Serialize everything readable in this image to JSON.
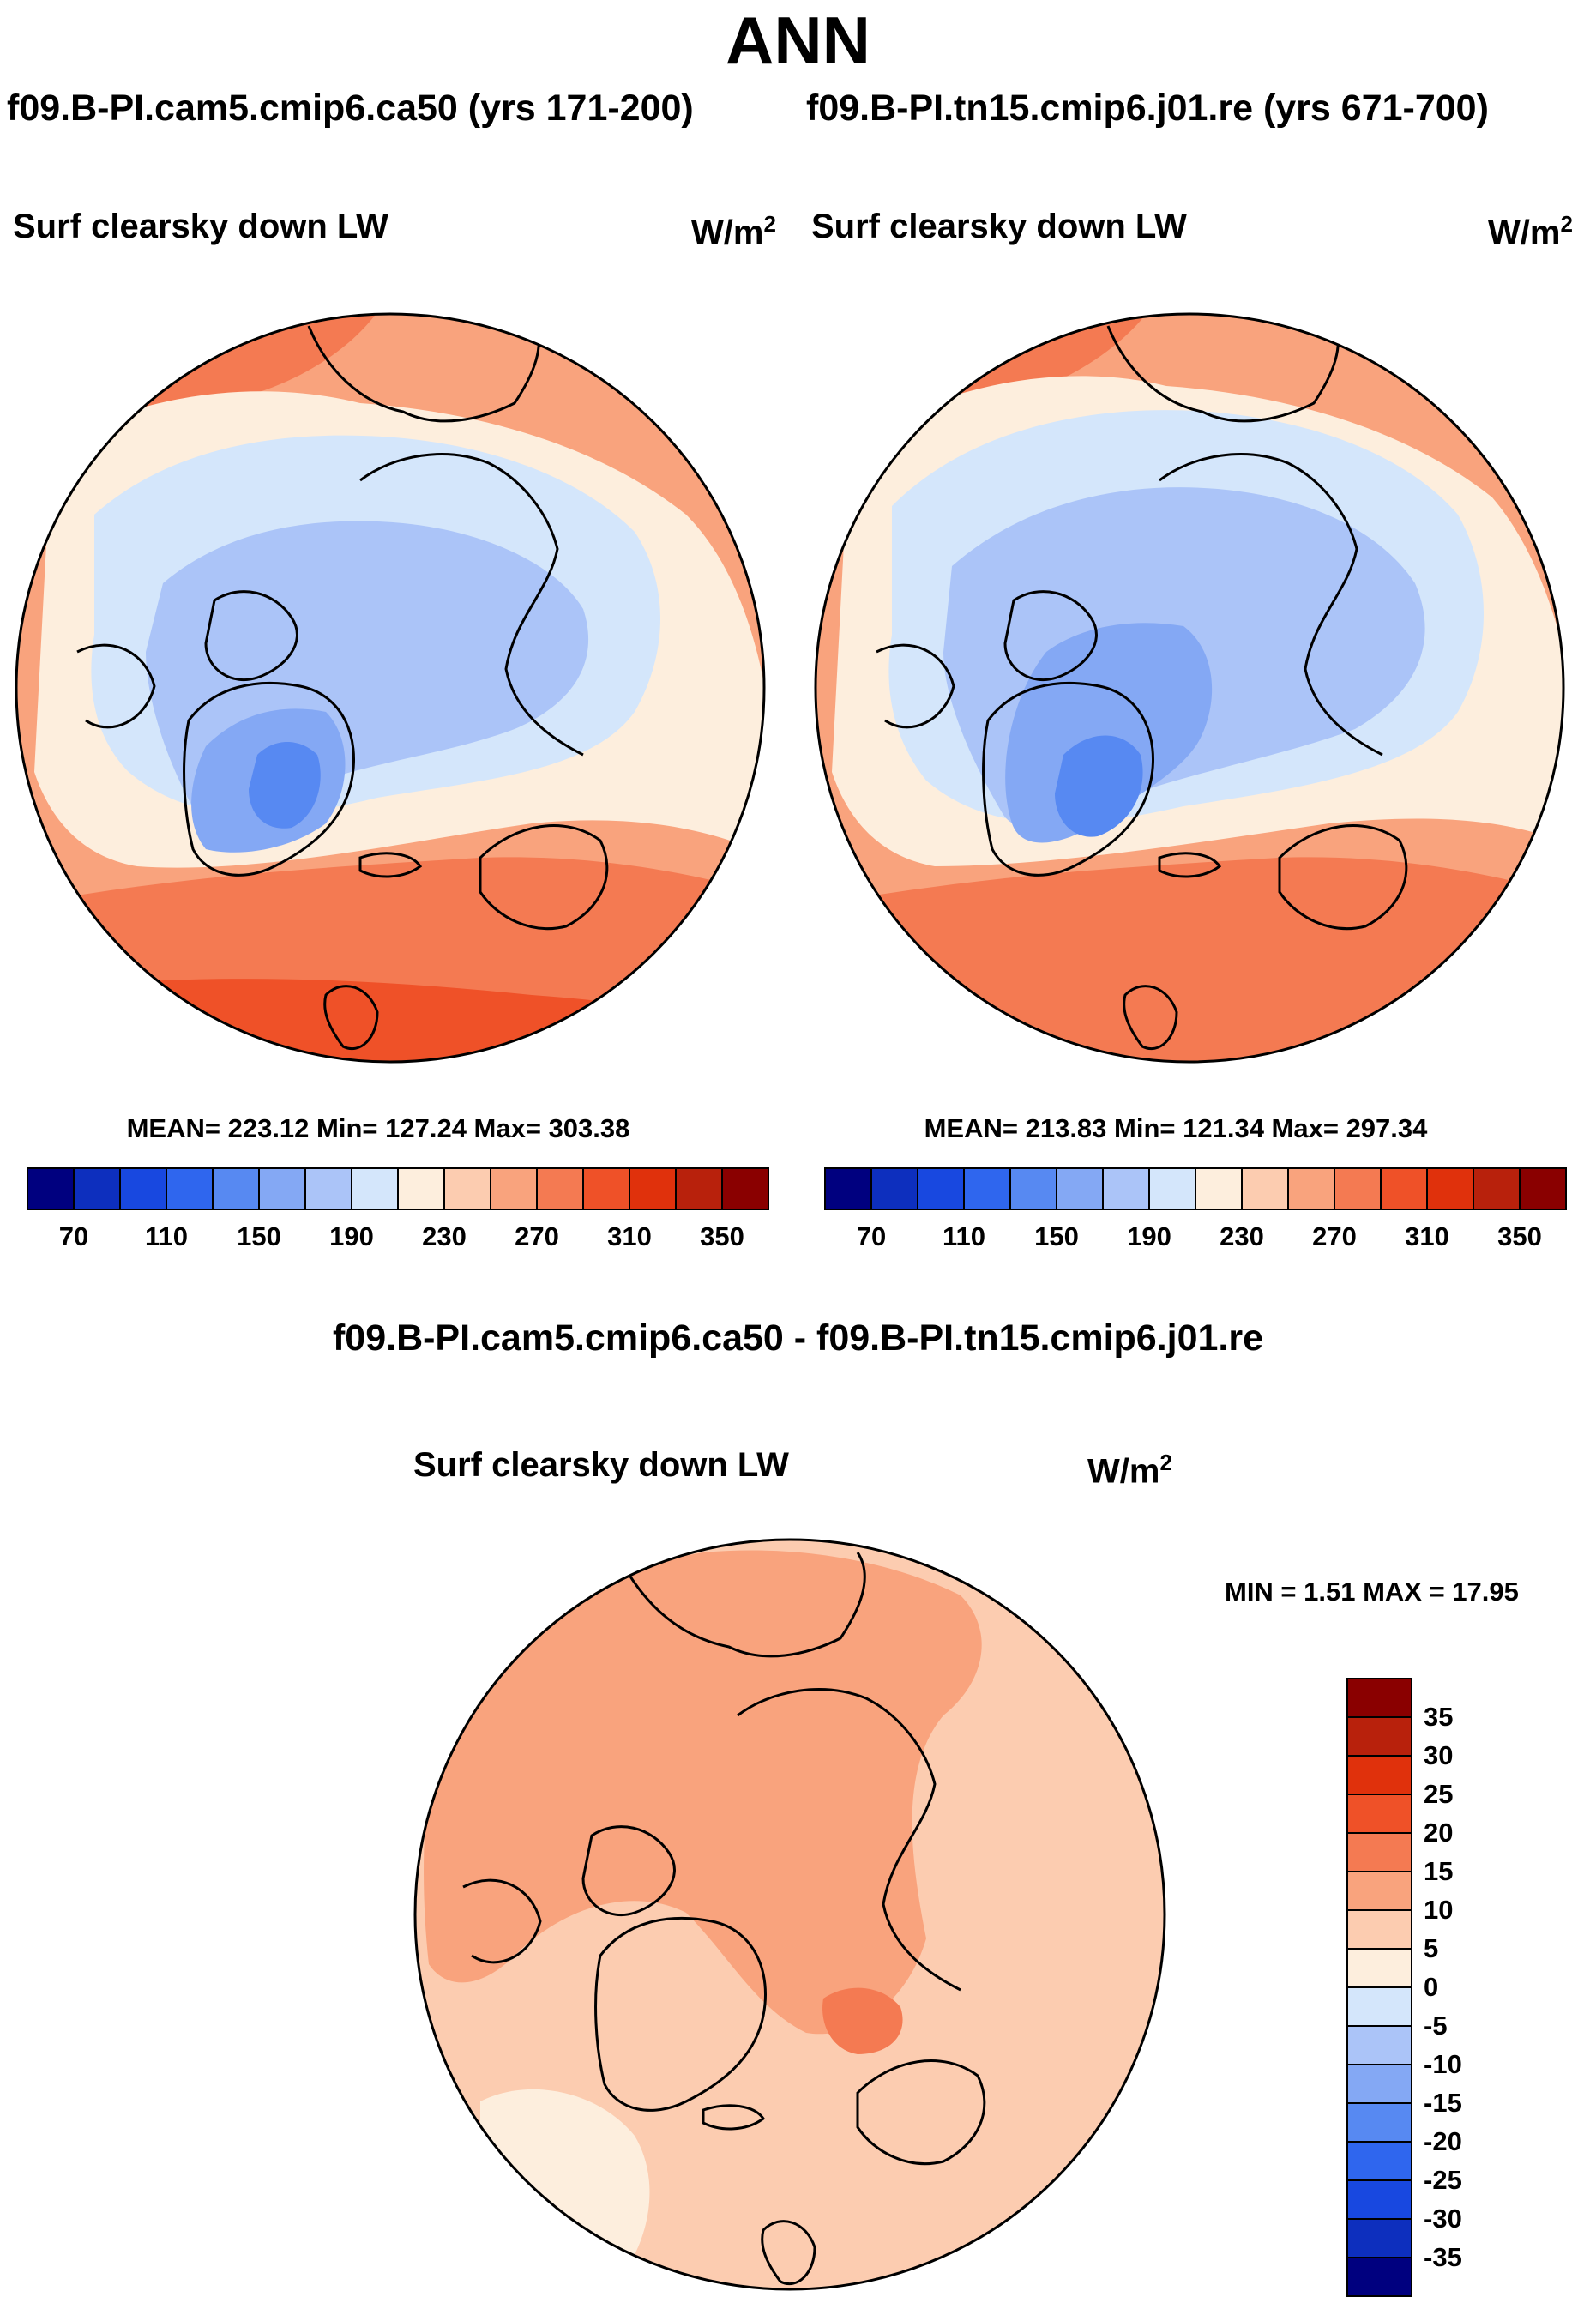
{
  "chart_data": {
    "type": "polar_contour_map",
    "title": "ANN",
    "subtitles": [
      "f09.B-PI.cam5.cmip6.ca50 (yrs 171-200)",
      "f09.B-PI.tn15.cmip6.j01.re (yrs 671-700)"
    ],
    "difference_title": "f09.B-PI.cam5.cmip6.ca50 - f09.B-PI.tn15.cmip6.j01.re",
    "panels": [
      {
        "id": "case1",
        "variable": "Surf clearsky down LW",
        "units": "W/m",
        "units_exponent": "2",
        "stats_text": "MEAN= 223.12  Min= 127.24  Max= 303.38",
        "mean": 223.12,
        "min": 127.24,
        "max": 303.38,
        "colorbar_levels": [
          70,
          90,
          110,
          130,
          150,
          170,
          190,
          210,
          230,
          250,
          270,
          290,
          310,
          330,
          350
        ],
        "colorbar_tick_labels": [
          "70",
          "110",
          "150",
          "190",
          "230",
          "270",
          "310",
          "350"
        ]
      },
      {
        "id": "case2",
        "variable": "Surf clearsky down LW",
        "units": "W/m",
        "units_exponent": "2",
        "stats_text": "MEAN= 213.83  Min= 121.34  Max= 297.34",
        "mean": 213.83,
        "min": 121.34,
        "max": 297.34,
        "colorbar_levels": [
          70,
          90,
          110,
          130,
          150,
          170,
          190,
          210,
          230,
          250,
          270,
          290,
          310,
          330,
          350
        ],
        "colorbar_tick_labels": [
          "70",
          "110",
          "150",
          "190",
          "230",
          "270",
          "310",
          "350"
        ]
      },
      {
        "id": "difference",
        "variable": "Surf clearsky down LW",
        "units": "W/m",
        "units_exponent": "2",
        "stats_text": "MIN =   1.51 MAX =  17.95",
        "min": 1.51,
        "max": 17.95,
        "colorbar_levels": [
          35,
          30,
          25,
          20,
          15,
          10,
          5,
          0,
          -5,
          -10,
          -15,
          -20,
          -25,
          -30,
          -35
        ],
        "colorbar_tick_labels": [
          "35",
          "30",
          "25",
          "20",
          "15",
          "10",
          "5",
          "0",
          "-5",
          "-10",
          "-15",
          "-20",
          "-25",
          "-30",
          "-35"
        ]
      }
    ],
    "colormap": [
      "#00007f",
      "#0d2fbe",
      "#1848e0",
      "#2f66ee",
      "#5789f2",
      "#84a8f4",
      "#abc4f8",
      "#d4e6fb",
      "#fdeedd",
      "#fcccb0",
      "#f9a37d",
      "#f47a52",
      "#ef5128",
      "#e0310c",
      "#b8210c",
      "#8a0000"
    ]
  }
}
